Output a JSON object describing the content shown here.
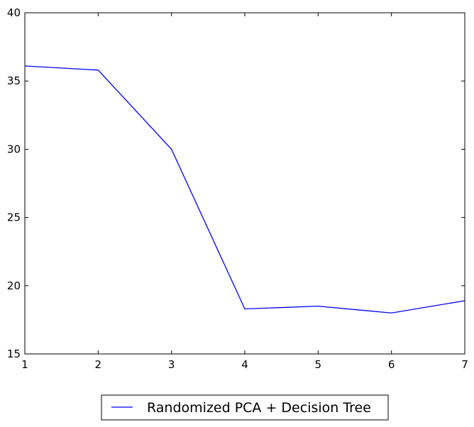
{
  "chart_data": {
    "type": "line",
    "title": "",
    "xlabel": "",
    "ylabel": "",
    "xlim": [
      1,
      7
    ],
    "ylim": [
      15,
      40
    ],
    "xticks": [
      1,
      2,
      3,
      4,
      5,
      6,
      7
    ],
    "yticks": [
      15,
      20,
      25,
      30,
      35,
      40
    ],
    "grid": false,
    "legend_position": "bottom-center",
    "series": [
      {
        "name": "Randomized PCA + Decision Tree",
        "color": "#0000ff",
        "x": [
          1,
          2,
          3,
          4,
          5,
          6,
          7
        ],
        "y": [
          36.1,
          35.8,
          30.0,
          18.3,
          18.5,
          18.0,
          18.9
        ]
      }
    ]
  }
}
